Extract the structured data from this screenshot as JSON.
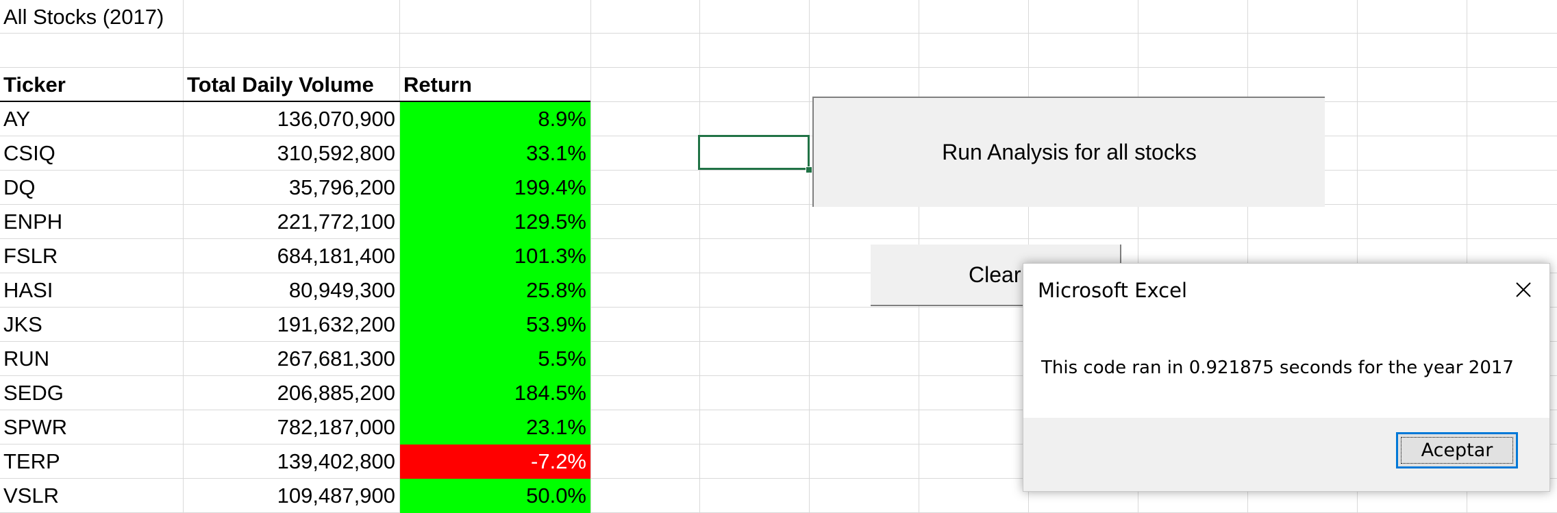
{
  "sheet": {
    "title": "All Stocks (2017)",
    "headers": {
      "ticker": "Ticker",
      "volume": "Total Daily Volume",
      "return": "Return"
    },
    "rows": [
      {
        "ticker": "AY",
        "volume": "136,070,900",
        "return": "8.9%",
        "positive": true
      },
      {
        "ticker": "CSIQ",
        "volume": "310,592,800",
        "return": "33.1%",
        "positive": true
      },
      {
        "ticker": "DQ",
        "volume": "35,796,200",
        "return": "199.4%",
        "positive": true
      },
      {
        "ticker": "ENPH",
        "volume": "221,772,100",
        "return": "129.5%",
        "positive": true
      },
      {
        "ticker": "FSLR",
        "volume": "684,181,400",
        "return": "101.3%",
        "positive": true
      },
      {
        "ticker": "HASI",
        "volume": "80,949,300",
        "return": "25.8%",
        "positive": true
      },
      {
        "ticker": "JKS",
        "volume": "191,632,200",
        "return": "53.9%",
        "positive": true
      },
      {
        "ticker": "RUN",
        "volume": "267,681,300",
        "return": "5.5%",
        "positive": true
      },
      {
        "ticker": "SEDG",
        "volume": "206,885,200",
        "return": "184.5%",
        "positive": true
      },
      {
        "ticker": "SPWR",
        "volume": "782,187,000",
        "return": "23.1%",
        "positive": true
      },
      {
        "ticker": "TERP",
        "volume": "139,402,800",
        "return": "-7.2%",
        "positive": false
      },
      {
        "ticker": "VSLR",
        "volume": "109,487,900",
        "return": "50.0%",
        "positive": true
      }
    ]
  },
  "buttons": {
    "run_label": "Run Analysis for all stocks",
    "clear_label": "Clear"
  },
  "dialog": {
    "title": "Microsoft Excel",
    "message": "This code ran in 0.921875 seconds for the year 2017",
    "ok_label": "Aceptar"
  },
  "colors": {
    "positive": "#00ff00",
    "negative": "#ff0000",
    "selection": "#217346",
    "focus": "#0078d7"
  },
  "icons": {
    "close": "close-icon"
  }
}
